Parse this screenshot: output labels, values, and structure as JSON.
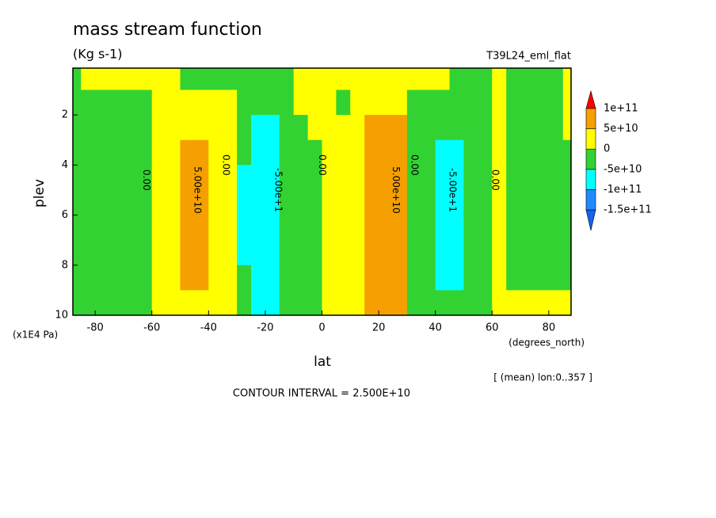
{
  "chart_data": {
    "type": "contour",
    "title": "mass stream function",
    "subtitle": "(Kg s-1)",
    "run_label": "T39L24_eml_flat",
    "y_label": "plev",
    "y_units": "(x1E4 Pa)",
    "x_label": "lat",
    "x_units": "(degrees_north)",
    "note": "[ (mean) lon:0..357 ]",
    "footer": "CONTOUR INTERVAL = 2.500E+10",
    "xlim": [
      -87.86,
      87.86
    ],
    "xticks": [
      -80,
      -60,
      -40,
      -20,
      0,
      20,
      40,
      60,
      80
    ],
    "ylim": [
      10,
      0.13
    ],
    "yticks": [
      2,
      4,
      6,
      8,
      10
    ],
    "levels": [
      {
        "value": -150000000000.0,
        "label": "-1.5e+11"
      },
      {
        "value": -100000000000.0,
        "label": "-1e+11"
      },
      {
        "value": -50000000000.0,
        "label": "-5e+10"
      },
      0,
      {
        "value": 50000000000.0,
        "label": "5e+10"
      },
      {
        "value": 100000000000.0,
        "label": "1e+11"
      }
    ],
    "colors": [
      "#1464f0",
      "#1e8cff",
      "#00ffff",
      "#33d233",
      "#ffff00",
      "#f5a000",
      "#ff0000"
    ],
    "lat": [
      -87.5,
      -82.5,
      -77.5,
      -72.5,
      -67.5,
      -62.5,
      -57.5,
      -52.5,
      -47.5,
      -42.5,
      -37.5,
      -32.5,
      -27.5,
      -22.5,
      -17.5,
      -12.5,
      -7.5,
      -2.5,
      2.5,
      7.5,
      12.5,
      17.5,
      22.5,
      27.5,
      32.5,
      37.5,
      42.5,
      47.5,
      52.5,
      57.5,
      62.5,
      67.5,
      72.5,
      77.5,
      82.5,
      87.5
    ],
    "plev": [
      0.5,
      1.5,
      2.5,
      3.5,
      4.5,
      5.5,
      6.5,
      7.5,
      8.5,
      9.5
    ],
    "field": [
      [
        -25000000000.0,
        25000000000.0,
        25000000000.0,
        25000000000.0,
        25000000000.0,
        25000000000.0,
        25000000000.0,
        25000000000.0,
        -25000000000.0,
        -25000000000.0,
        -25000000000.0,
        -25000000000.0,
        -25000000000.0,
        -25000000000.0,
        -25000000000.0,
        -25000000000.0,
        25000000000.0,
        25000000000.0,
        25000000000.0,
        25000000000.0,
        25000000000.0,
        25000000000.0,
        25000000000.0,
        25000000000.0,
        25000000000.0,
        25000000000.0,
        25000000000.0,
        -25000000000.0,
        -25000000000.0,
        -25000000000.0,
        25000000000.0,
        -25000000000.0,
        -25000000000.0,
        -25000000000.0,
        -25000000000.0,
        25000000000.0
      ],
      [
        -25000000000.0,
        -25000000000.0,
        -25000000000.0,
        -25000000000.0,
        -25000000000.0,
        -25000000000.0,
        25000000000.0,
        25000000000.0,
        25000000000.0,
        25000000000.0,
        25000000000.0,
        25000000000.0,
        -25000000000.0,
        -25000000000.0,
        -25000000000.0,
        -25000000000.0,
        25000000000.0,
        25000000000.0,
        25000000000.0,
        -25000000000.0,
        25000000000.0,
        25000000000.0,
        25000000000.0,
        25000000000.0,
        -25000000000.0,
        -25000000000.0,
        -25000000000.0,
        -25000000000.0,
        -25000000000.0,
        -25000000000.0,
        25000000000.0,
        -25000000000.0,
        -25000000000.0,
        -25000000000.0,
        -25000000000.0,
        25000000000.0
      ],
      [
        -25000000000.0,
        -25000000000.0,
        -25000000000.0,
        -25000000000.0,
        -25000000000.0,
        -25000000000.0,
        25000000000.0,
        25000000000.0,
        25000000000.0,
        25000000000.0,
        25000000000.0,
        25000000000.0,
        -25000000000.0,
        -70000000000.0,
        -70000000000.0,
        -25000000000.0,
        -25000000000.0,
        25000000000.0,
        25000000000.0,
        25000000000.0,
        25000000000.0,
        70000000000.0,
        70000000000.0,
        70000000000.0,
        -25000000000.0,
        -25000000000.0,
        -25000000000.0,
        -25000000000.0,
        -25000000000.0,
        -25000000000.0,
        25000000000.0,
        -25000000000.0,
        -25000000000.0,
        -25000000000.0,
        -25000000000.0,
        25000000000.0
      ],
      [
        -25000000000.0,
        -25000000000.0,
        -25000000000.0,
        -25000000000.0,
        -25000000000.0,
        -25000000000.0,
        25000000000.0,
        25000000000.0,
        70000000000.0,
        70000000000.0,
        25000000000.0,
        25000000000.0,
        -25000000000.0,
        -70000000000.0,
        -70000000000.0,
        -25000000000.0,
        -25000000000.0,
        -25000000000.0,
        25000000000.0,
        25000000000.0,
        25000000000.0,
        70000000000.0,
        70000000000.0,
        70000000000.0,
        -25000000000.0,
        -25000000000.0,
        -70000000000.0,
        -70000000000.0,
        -25000000000.0,
        -25000000000.0,
        25000000000.0,
        -25000000000.0,
        -25000000000.0,
        -25000000000.0,
        -25000000000.0,
        -25000000000.0
      ],
      [
        -25000000000.0,
        -25000000000.0,
        -25000000000.0,
        -25000000000.0,
        -25000000000.0,
        -25000000000.0,
        25000000000.0,
        25000000000.0,
        70000000000.0,
        70000000000.0,
        25000000000.0,
        25000000000.0,
        -70000000000.0,
        -70000000000.0,
        -70000000000.0,
        -25000000000.0,
        -25000000000.0,
        -25000000000.0,
        25000000000.0,
        25000000000.0,
        25000000000.0,
        70000000000.0,
        70000000000.0,
        70000000000.0,
        -25000000000.0,
        -25000000000.0,
        -70000000000.0,
        -70000000000.0,
        -25000000000.0,
        -25000000000.0,
        25000000000.0,
        -25000000000.0,
        -25000000000.0,
        -25000000000.0,
        -25000000000.0,
        -25000000000.0
      ],
      [
        -25000000000.0,
        -25000000000.0,
        -25000000000.0,
        -25000000000.0,
        -25000000000.0,
        -25000000000.0,
        25000000000.0,
        25000000000.0,
        70000000000.0,
        70000000000.0,
        25000000000.0,
        25000000000.0,
        -70000000000.0,
        -70000000000.0,
        -70000000000.0,
        -25000000000.0,
        -25000000000.0,
        -25000000000.0,
        25000000000.0,
        25000000000.0,
        25000000000.0,
        70000000000.0,
        70000000000.0,
        70000000000.0,
        -25000000000.0,
        -25000000000.0,
        -70000000000.0,
        -70000000000.0,
        -25000000000.0,
        -25000000000.0,
        25000000000.0,
        -25000000000.0,
        -25000000000.0,
        -25000000000.0,
        -25000000000.0,
        -25000000000.0
      ],
      [
        -25000000000.0,
        -25000000000.0,
        -25000000000.0,
        -25000000000.0,
        -25000000000.0,
        -25000000000.0,
        25000000000.0,
        25000000000.0,
        70000000000.0,
        70000000000.0,
        25000000000.0,
        25000000000.0,
        -70000000000.0,
        -70000000000.0,
        -70000000000.0,
        -25000000000.0,
        -25000000000.0,
        -25000000000.0,
        25000000000.0,
        25000000000.0,
        25000000000.0,
        70000000000.0,
        70000000000.0,
        70000000000.0,
        -25000000000.0,
        -25000000000.0,
        -70000000000.0,
        -70000000000.0,
        -25000000000.0,
        -25000000000.0,
        25000000000.0,
        -25000000000.0,
        -25000000000.0,
        -25000000000.0,
        -25000000000.0,
        -25000000000.0
      ],
      [
        -25000000000.0,
        -25000000000.0,
        -25000000000.0,
        -25000000000.0,
        -25000000000.0,
        -25000000000.0,
        25000000000.0,
        25000000000.0,
        70000000000.0,
        70000000000.0,
        25000000000.0,
        25000000000.0,
        -70000000000.0,
        -70000000000.0,
        -70000000000.0,
        -25000000000.0,
        -25000000000.0,
        -25000000000.0,
        25000000000.0,
        25000000000.0,
        25000000000.0,
        70000000000.0,
        70000000000.0,
        70000000000.0,
        -25000000000.0,
        -25000000000.0,
        -70000000000.0,
        -70000000000.0,
        -25000000000.0,
        -25000000000.0,
        25000000000.0,
        -25000000000.0,
        -25000000000.0,
        -25000000000.0,
        -25000000000.0,
        -25000000000.0
      ],
      [
        -25000000000.0,
        -25000000000.0,
        -25000000000.0,
        -25000000000.0,
        -25000000000.0,
        -25000000000.0,
        25000000000.0,
        25000000000.0,
        70000000000.0,
        70000000000.0,
        25000000000.0,
        25000000000.0,
        -25000000000.0,
        -70000000000.0,
        -70000000000.0,
        -25000000000.0,
        -25000000000.0,
        -25000000000.0,
        25000000000.0,
        25000000000.0,
        25000000000.0,
        70000000000.0,
        70000000000.0,
        70000000000.0,
        -25000000000.0,
        -25000000000.0,
        -70000000000.0,
        -70000000000.0,
        -25000000000.0,
        -25000000000.0,
        25000000000.0,
        -25000000000.0,
        -25000000000.0,
        -25000000000.0,
        -25000000000.0,
        -25000000000.0
      ],
      [
        -25000000000.0,
        -25000000000.0,
        -25000000000.0,
        -25000000000.0,
        -25000000000.0,
        -25000000000.0,
        25000000000.0,
        25000000000.0,
        25000000000.0,
        25000000000.0,
        25000000000.0,
        25000000000.0,
        -25000000000.0,
        -70000000000.0,
        -70000000000.0,
        -25000000000.0,
        -25000000000.0,
        -25000000000.0,
        25000000000.0,
        25000000000.0,
        25000000000.0,
        70000000000.0,
        70000000000.0,
        70000000000.0,
        -25000000000.0,
        -25000000000.0,
        -25000000000.0,
        -25000000000.0,
        -25000000000.0,
        -25000000000.0,
        25000000000.0,
        25000000000.0,
        25000000000.0,
        25000000000.0,
        25000000000.0,
        25000000000.0
      ]
    ],
    "contour_labels": [
      {
        "text": "5.00e+10",
        "lat": -44,
        "plev": 5
      },
      {
        "text": "-5.00e+1",
        "lat": -15.5,
        "plev": 5
      },
      {
        "text": "5.00e+10",
        "lat": 26,
        "plev": 5
      },
      {
        "text": "-5.00e+1",
        "lat": 46,
        "plev": 5
      },
      {
        "text": "0.00",
        "lat": -62,
        "plev": 4.6
      },
      {
        "text": "0.00",
        "lat": -34,
        "plev": 4
      },
      {
        "text": "0.00",
        "lat": 0,
        "plev": 4
      },
      {
        "text": "0.00",
        "lat": 32.5,
        "plev": 4
      },
      {
        "text": "0.00",
        "lat": 61,
        "plev": 4.6
      }
    ]
  }
}
